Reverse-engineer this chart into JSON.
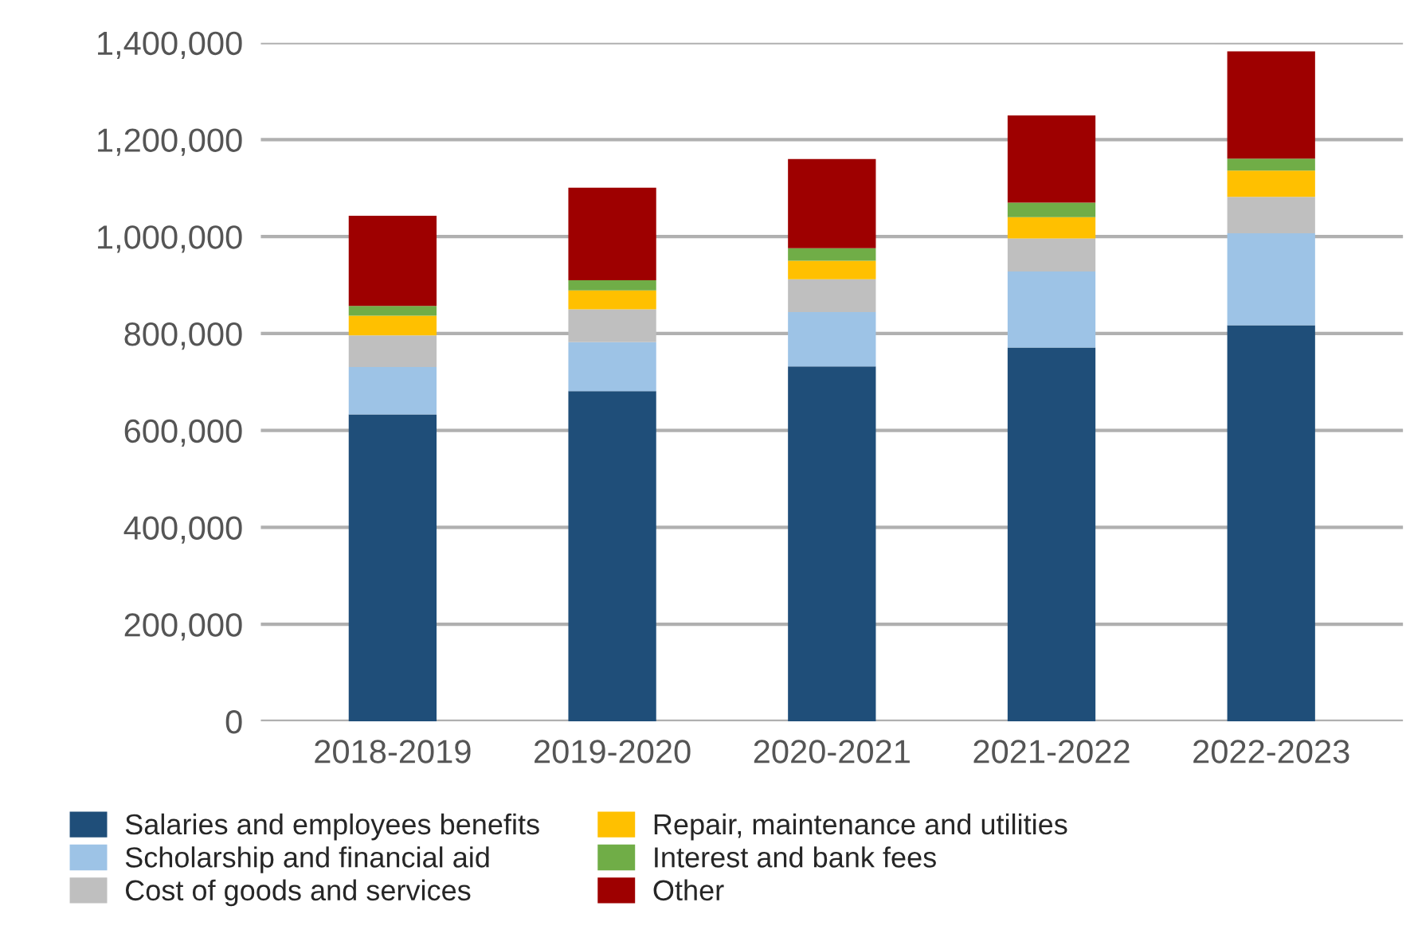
{
  "chart_data": {
    "type": "bar",
    "stacked": true,
    "categories": [
      "2018-2019",
      "2019-2020",
      "2020-2021",
      "2021-2022",
      "2022-2023"
    ],
    "series": [
      {
        "name": "Salaries and employees benefits",
        "color": "#1f4e79",
        "values": [
          633000,
          681000,
          732000,
          771000,
          817000
        ]
      },
      {
        "name": "Scholarship and financial aid",
        "color": "#9dc3e6",
        "values": [
          98000,
          101000,
          112000,
          157000,
          190000
        ]
      },
      {
        "name": "Cost of goods and services",
        "color": "#bfbfbf",
        "values": [
          65000,
          68000,
          68000,
          68000,
          75000
        ]
      },
      {
        "name": "Repair, maintenance and utilities",
        "color": "#ffc000",
        "values": [
          41000,
          39000,
          38000,
          44000,
          54000
        ]
      },
      {
        "name": "Interest and bank fees",
        "color": "#70ad47",
        "values": [
          20000,
          21000,
          26000,
          30000,
          25000
        ]
      },
      {
        "name": "Other",
        "color": "#9e0000",
        "values": [
          186000,
          191000,
          184000,
          180000,
          221000
        ]
      }
    ],
    "ylim": [
      0,
      1400000
    ],
    "yticks": [
      0,
      {
        "value": 200000,
        "label": "200,000"
      },
      {
        "value": 400000,
        "label": "400,000"
      },
      {
        "value": 600000,
        "label": "600,000"
      },
      {
        "value": 800000,
        "label": "800,000"
      },
      {
        "value": 1000000,
        "label": "1,000,000"
      },
      {
        "value": 1200000,
        "label": "1,200,000"
      },
      {
        "value": 1400000,
        "label": "1,400,000"
      }
    ],
    "grid": "y",
    "legend": "bottom"
  }
}
